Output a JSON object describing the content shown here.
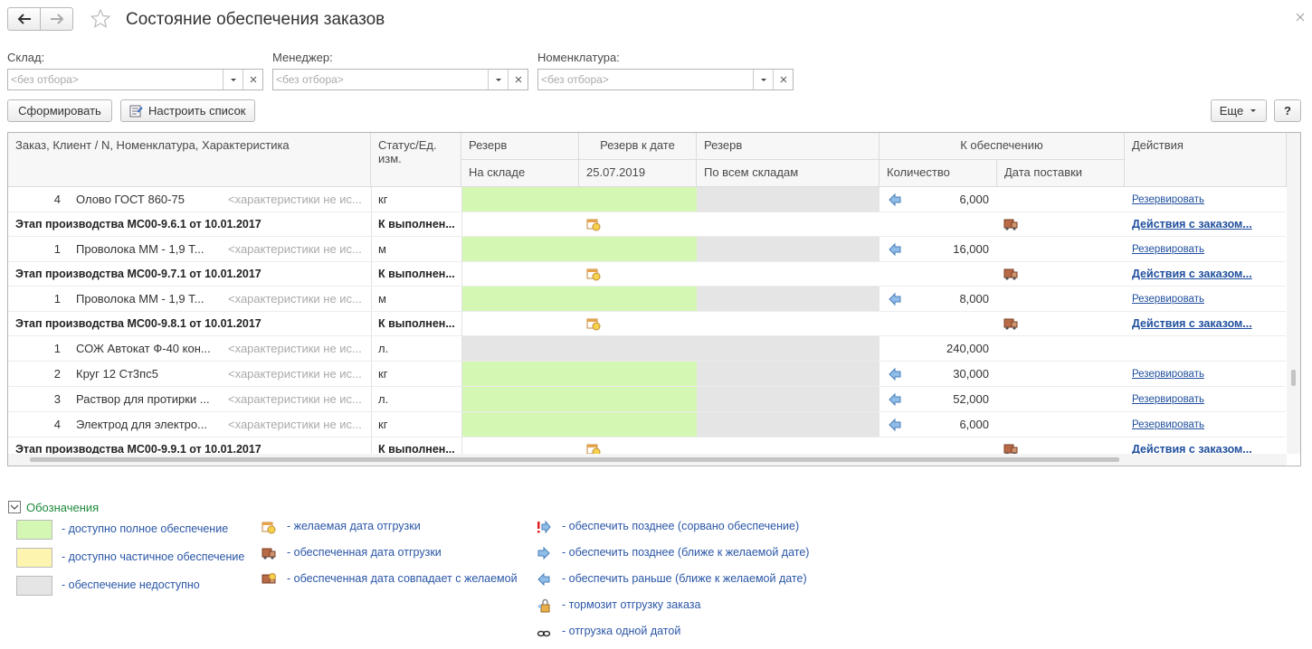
{
  "header": {
    "title": "Состояние обеспечения заказов"
  },
  "filters": [
    {
      "label": "Склад:",
      "placeholder": "<без отбора>"
    },
    {
      "label": "Менеджер:",
      "placeholder": "<без отбора>"
    },
    {
      "label": "Номенклатура:",
      "placeholder": "<без отбора>"
    }
  ],
  "buttons": {
    "generate": "Сформировать",
    "configure": "Настроить список",
    "more": "Еще",
    "help": "?"
  },
  "table": {
    "columns": {
      "order": "Заказ, Клиент / N, Номенклатура, Характеристика",
      "status": "Статус/Ед. изм.",
      "reserve": "Резерв",
      "reserve_sub": "На складе",
      "reserve_date": "Резерв к дате",
      "reserve_date_sub": "25.07.2019",
      "reserve_all": "Резерв",
      "reserve_all_sub": "По всем складам",
      "to_supply": "К обеспечению",
      "quantity": "Количество",
      "delivery_date": "Дата поставки",
      "actions": "Действия"
    },
    "rows": [
      {
        "kind": "item",
        "n": 4,
        "name": "Олово ГОСТ 860-75",
        "characteristic": "<характеристики не ис...",
        "unit": "кг",
        "supply": "full",
        "arrow": "earlier",
        "quantity": "6,000",
        "action": "Резервировать"
      },
      {
        "kind": "stage",
        "name": "Этап производства МС00-9.6.1 от 10.01.2017",
        "status": "К выполнен...",
        "action": "Действия с заказом..."
      },
      {
        "kind": "item",
        "n": 1,
        "name": "Проволока  ММ - 1,9 Т...",
        "characteristic": "<характеристики не ис...",
        "unit": "м",
        "supply": "full",
        "arrow": "earlier",
        "quantity": "16,000",
        "action": "Резервировать"
      },
      {
        "kind": "stage",
        "name": "Этап производства МС00-9.7.1 от 10.01.2017",
        "status": "К выполнен...",
        "action": "Действия с заказом..."
      },
      {
        "kind": "item",
        "n": 1,
        "name": "Проволока  ММ - 1,9 Т...",
        "characteristic": "<характеристики не ис...",
        "unit": "м",
        "supply": "full",
        "arrow": "earlier",
        "quantity": "8,000",
        "action": "Резервировать"
      },
      {
        "kind": "stage",
        "name": "Этап производства МС00-9.8.1 от 10.01.2017",
        "status": "К выполнен...",
        "action": "Действия с заказом..."
      },
      {
        "kind": "item",
        "n": 1,
        "name": "СОЖ Автокат Ф-40 кон...",
        "characteristic": "<характеристики не ис...",
        "unit": "л.",
        "supply": "none",
        "quantity": "240,000"
      },
      {
        "kind": "item",
        "n": 2,
        "name": "Круг 12 Ст3пс5",
        "characteristic": "<характеристики не ис...",
        "unit": "кг",
        "supply": "full",
        "arrow": "earlier",
        "quantity": "30,000",
        "action": "Резервировать"
      },
      {
        "kind": "item",
        "n": 3,
        "name": "Раствор для протирки ...",
        "characteristic": "<характеристики не ис...",
        "unit": "л.",
        "supply": "full",
        "arrow": "earlier",
        "quantity": "52,000",
        "action": "Резервировать"
      },
      {
        "kind": "item",
        "n": 4,
        "name": "Электрод для электро...",
        "characteristic": "<характеристики не ис...",
        "unit": "кг",
        "supply": "full",
        "arrow": "earlier",
        "quantity": "6,000",
        "action": "Резервировать"
      },
      {
        "kind": "stage",
        "name": "Этап производства МС00-9.9.1 от 10.01.2017",
        "status": "К выполнен...",
        "action": "Действия с заказом..."
      }
    ]
  },
  "legend": {
    "title": "Обозначения",
    "colors": [
      {
        "color": "#d4f7b4",
        "label": "- доступно полное обеспечение"
      },
      {
        "color": "#fdf4b0",
        "label": "- доступно частичное обеспечение"
      },
      {
        "color": "#e5e5e5",
        "label": "- обеспечение недоступно"
      }
    ],
    "dates": [
      {
        "label": "- желаемая дата отгрузки"
      },
      {
        "label": "- обеспеченная дата отгрузки"
      },
      {
        "label": "- обеспеченная дата совпадает с желаемой"
      }
    ],
    "supply": [
      {
        "label": "- обеспечить позднее (сорвано обеспечение)"
      },
      {
        "label": "- обеспечить позднее (ближе к желаемой дате)"
      },
      {
        "label": "- обеспечить раньше (ближе к желаемой дате)"
      },
      {
        "label": "- тормозит отгрузку заказа"
      },
      {
        "label": "- отгрузка одной датой"
      }
    ]
  }
}
